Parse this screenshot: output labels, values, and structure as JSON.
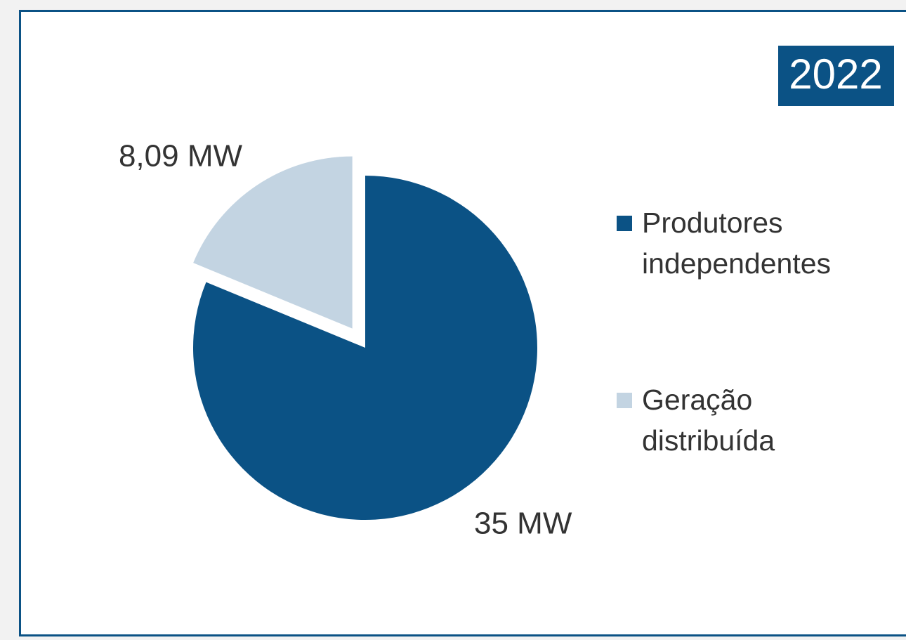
{
  "chart_data": {
    "type": "pie",
    "title": "2022",
    "series": [
      {
        "name": "Produtores independentes",
        "color": "#0b5285",
        "values": [
          35
        ],
        "value_labels": [
          "35 MW"
        ]
      },
      {
        "name": "Geração distribuída",
        "color": "#c3d4e2",
        "values": [
          8.09
        ],
        "value_labels": [
          "8,09 MW"
        ]
      }
    ],
    "legend": "right"
  }
}
